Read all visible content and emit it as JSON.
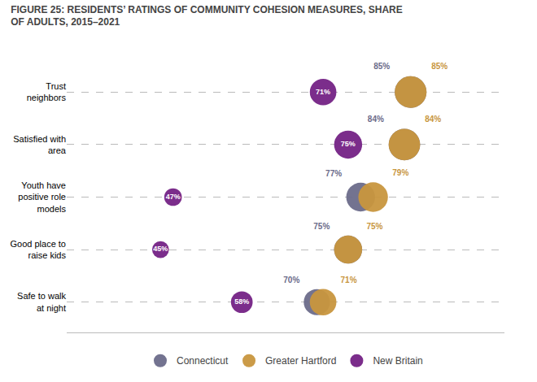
{
  "chart_data": {
    "type": "scatter",
    "title": "FIGURE 25: RESIDENTS’ RATINGS OF COMMUNITY COHESION MEASURES, SHARE\nOF ADULTS, 2015–2021",
    "categories": [
      "Trust\nneighbors",
      "Satisfied with\narea",
      "Youth have\npositive role\nmodels",
      "Good place to\nraise kids",
      "Safe to walk\nat night"
    ],
    "series": [
      {
        "name": "Connecticut",
        "color": "#6B6B8A",
        "values": [
          85,
          84,
          77,
          75,
          70
        ],
        "value_labels": [
          "85%",
          "84%",
          "77%",
          "75%",
          "70%"
        ]
      },
      {
        "name": "Greater Hartford",
        "color": "#C8963E",
        "values": [
          85,
          84,
          79,
          75,
          71
        ],
        "value_labels": [
          "85%",
          "84%",
          "79%",
          "75%",
          "71%"
        ]
      },
      {
        "name": "New Britain",
        "color": "#7B2D8B",
        "values": [
          71,
          75,
          47,
          45,
          58
        ],
        "value_labels": [
          "71%",
          "75%",
          "47%",
          "45%",
          "58%"
        ]
      }
    ],
    "orientation": "horizontal",
    "xlim": [
      30,
      100
    ],
    "tick_labels": "y",
    "grid": true,
    "legend": "bottom",
    "data_labels": true
  }
}
